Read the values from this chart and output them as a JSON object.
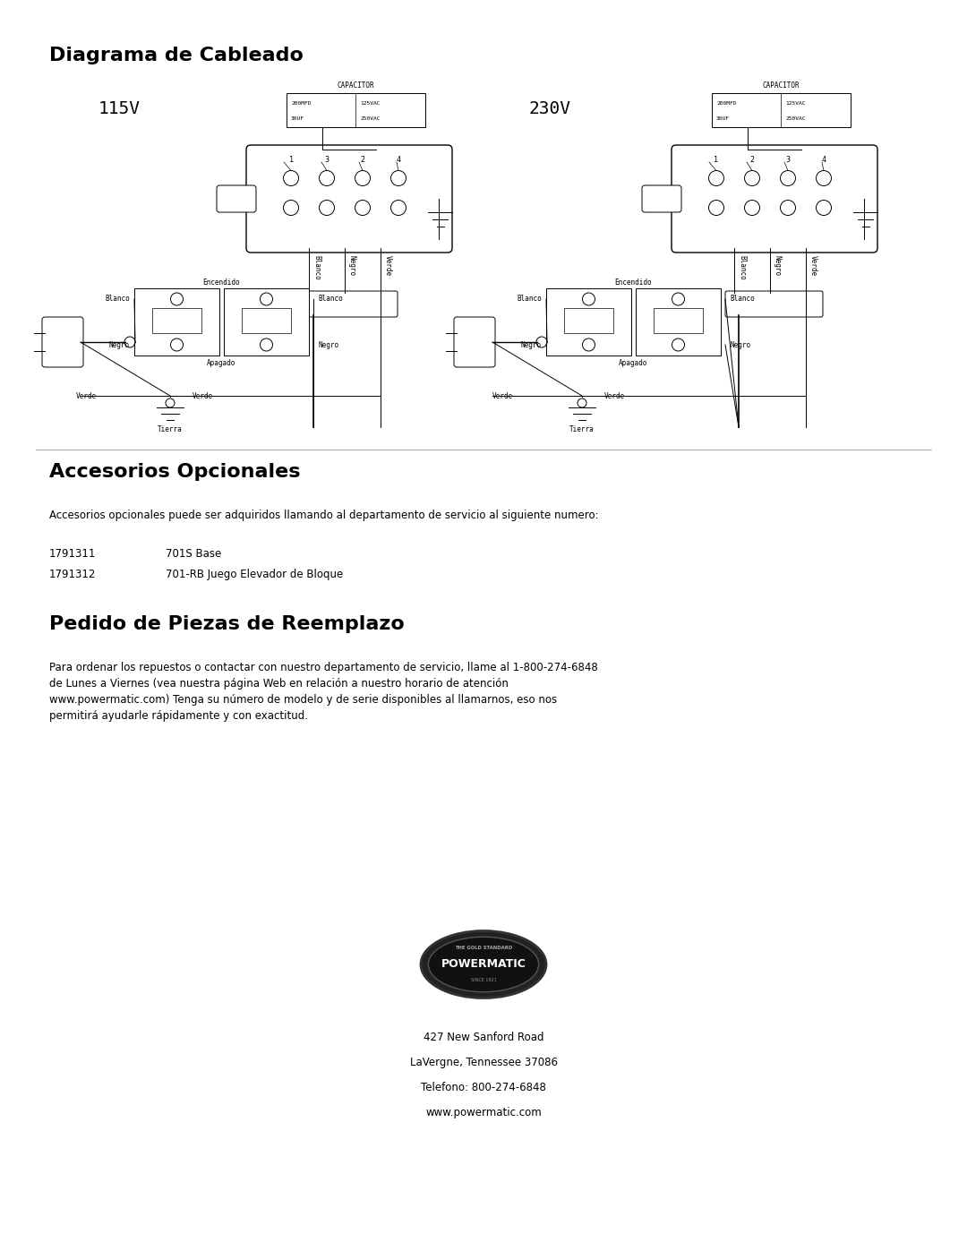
{
  "title_wiring": "Diagrama de Cableado",
  "label_115v": "115V",
  "label_230v": "230V",
  "cap_label": "CAPACITOR",
  "cap_line1": "200MFD    125VAC",
  "cap_line2": "30UF      250VAC",
  "title_accessories": "Accesorios Opcionales",
  "accessories_body": "Accesorios opcionales puede ser adquiridos llamando al departamento de servicio al siguiente numero:",
  "part1_num": "1791311",
  "part1_desc": "701S Base",
  "part2_num": "1791312",
  "part2_desc": "701-RB Juego Elevador de Bloque",
  "title_parts": "Pedido de Piezas de Reemplazo",
  "parts_body": "Para ordenar los repuestos o contactar con nuestro departamento de servicio, llame al 1-800-274-6848\nde Lunes a Viernes (vea nuestra página Web en relación a nuestro horario de atención\nwww.powermatic.com) Tenga su número de modelo y de serie disponibles al llamarnos, eso nos\npermitirá ayudarle rápidamente y con exactitud.",
  "footer_line1": "427 New Sanford Road",
  "footer_line2": "LaVergne, Tennessee 37086",
  "footer_line3": "Telefono: 800-274-6848",
  "footer_line4": "www.powermatic.com",
  "bg_color": "#ffffff",
  "line_color": "#000000",
  "text_color": "#000000"
}
